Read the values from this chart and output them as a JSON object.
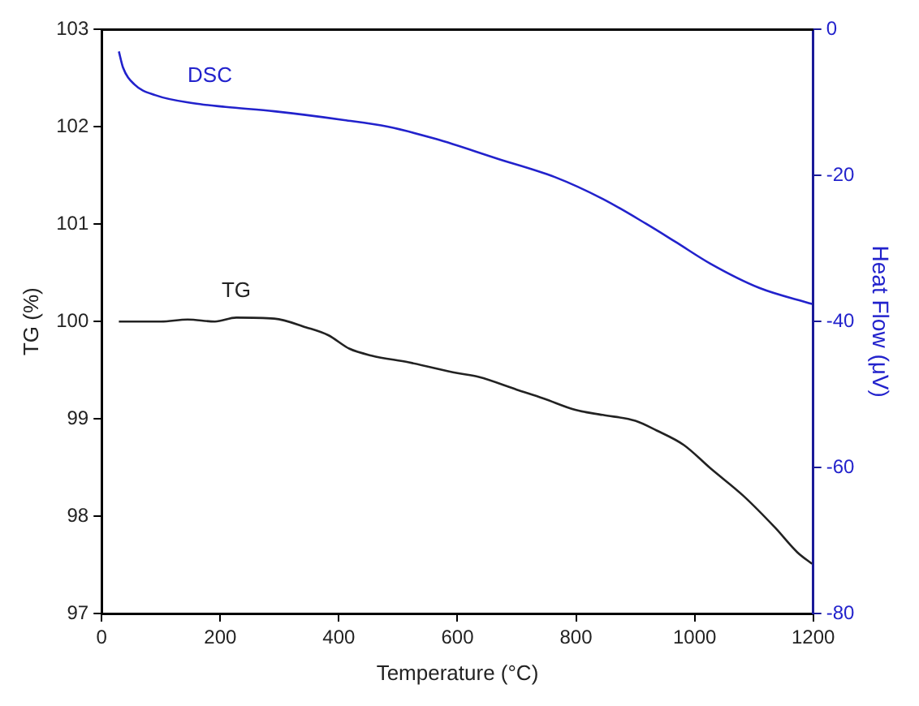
{
  "chart_data": {
    "type": "line",
    "xlabel": "Temperature (°C)",
    "ylabel": "TG (%)",
    "y2label": "Heat Flow (μV)",
    "xlim": [
      0,
      1200
    ],
    "xticks": [
      0,
      200,
      400,
      600,
      800,
      1000,
      1200
    ],
    "ylim": [
      97,
      103
    ],
    "yticks": [
      97,
      98,
      99,
      100,
      101,
      102,
      103
    ],
    "y2lim": [
      -80,
      0
    ],
    "y2ticks": [
      -80,
      -60,
      -40,
      -20,
      0
    ],
    "grid": false,
    "legend": false,
    "marker": "none",
    "line_style": "solid",
    "series": [
      {
        "name": "DSC",
        "color": "#2222cc",
        "axis": "y2",
        "x": [
          29,
          36,
          55,
          91,
          155,
          209,
          291,
          409,
          482,
          564,
          664,
          764,
          845,
          918,
          968,
          1027,
          1109,
          1198
        ],
        "values": [
          -3.0,
          -5.2,
          -7.5,
          -9.0,
          -10.1,
          -10.6,
          -11.2,
          -12.4,
          -13.3,
          -15.0,
          -17.6,
          -20.2,
          -23.2,
          -26.6,
          -29.1,
          -32.1,
          -35.4,
          -37.6
        ]
      },
      {
        "name": "TG",
        "color": "#222222",
        "axis": "y",
        "x": [
          29,
          100,
          145,
          191,
          227,
          291,
          345,
          382,
          418,
          455,
          518,
          600,
          636,
          700,
          745,
          800,
          845,
          900,
          936,
          982,
          1027,
          1082,
          1136,
          1173,
          1198
        ],
        "values": [
          100.0,
          100.0,
          100.02,
          100.0,
          100.04,
          100.03,
          99.94,
          99.86,
          99.72,
          99.65,
          99.58,
          99.47,
          99.43,
          99.3,
          99.21,
          99.09,
          99.04,
          98.98,
          98.88,
          98.73,
          98.49,
          98.21,
          97.88,
          97.63,
          97.51
        ]
      }
    ]
  }
}
